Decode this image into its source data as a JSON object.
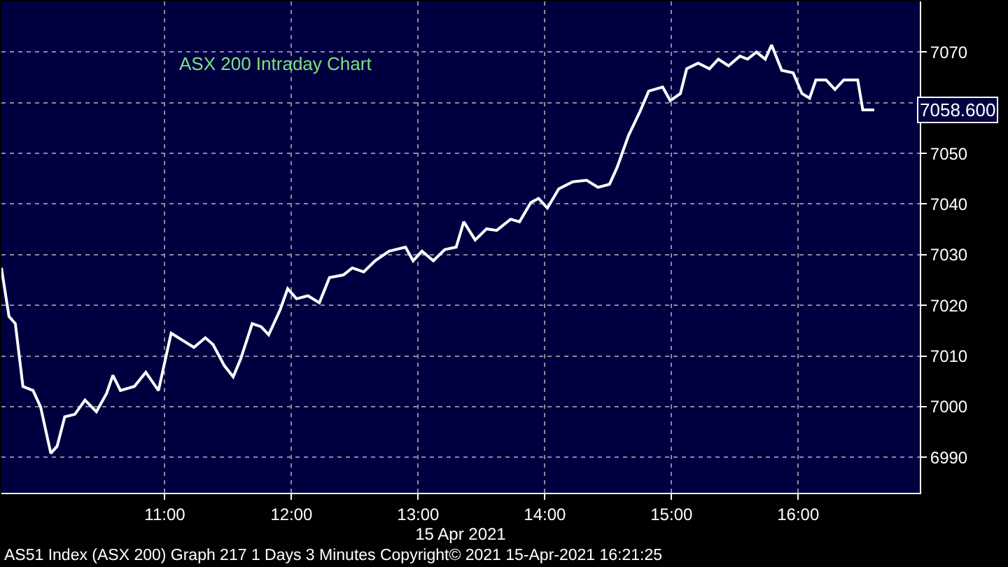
{
  "chart_data": {
    "type": "line",
    "xlabel": "15 Apr 2021",
    "annotations": [
      "ASX 200 Intraday Chart",
      "AS51 Index (ASX 200) Graph 217 1 Days 3 Minutes Copyright© 2021 15-Apr-2021 16:21:25",
      {
        "text": "7058.600",
        "x": 16.6,
        "y": 7058.6
      }
    ],
    "x": [
      9.71,
      9.77,
      9.82,
      9.88,
      9.96,
      10.02,
      10.1,
      10.15,
      10.21,
      10.29,
      10.37,
      10.46,
      10.54,
      10.59,
      10.65,
      10.76,
      10.85,
      10.95,
      11.05,
      11.14,
      11.23,
      11.32,
      11.38,
      11.47,
      11.54,
      11.6,
      11.69,
      11.76,
      11.82,
      11.91,
      11.97,
      12.04,
      12.13,
      12.22,
      12.3,
      12.41,
      12.48,
      12.57,
      12.66,
      12.77,
      12.9,
      12.96,
      13.03,
      13.12,
      13.21,
      13.3,
      13.36,
      13.45,
      13.54,
      13.62,
      13.73,
      13.8,
      13.89,
      13.95,
      14.02,
      14.11,
      14.22,
      14.33,
      14.42,
      14.51,
      14.57,
      14.66,
      14.75,
      14.82,
      14.93,
      14.99,
      15.07,
      15.12,
      15.21,
      15.3,
      15.37,
      15.45,
      15.54,
      15.6,
      15.67,
      15.74,
      15.79,
      15.87,
      15.96,
      16.03,
      16.09,
      16.14,
      16.22,
      16.29,
      16.36,
      16.47,
      16.51,
      16.6
    ],
    "series": [
      {
        "color": "#ffffff",
        "values": [
          7027.4,
          7017.8,
          7016.4,
          7004,
          7003.2,
          6999.9,
          6990.8,
          6992.2,
          6998,
          6998.5,
          7001.3,
          6999,
          7002.6,
          7006.2,
          7003.2,
          7004,
          7006.8,
          7003.2,
          7014.5,
          7013.1,
          7011.7,
          7013.6,
          7012.3,
          7008.1,
          7005.9,
          7009.5,
          7016.4,
          7015.8,
          7014.2,
          7019.1,
          7023.3,
          7021.3,
          7021.9,
          7020.5,
          7025.5,
          7026,
          7027.4,
          7026.6,
          7028.8,
          7030.7,
          7031.5,
          7028.8,
          7030.7,
          7028.8,
          7031,
          7031.5,
          7036.5,
          7032.9,
          7035.1,
          7034.8,
          7037,
          7036.5,
          7040.3,
          7041.1,
          7039.2,
          7043,
          7044.4,
          7044.7,
          7043.3,
          7043.9,
          7047.2,
          7053.5,
          7058.2,
          7062.3,
          7063.1,
          7060.4,
          7061.8,
          7066.7,
          7067.8,
          7066.7,
          7068.6,
          7067.3,
          7069.2,
          7068.6,
          7070,
          7068.6,
          7071.4,
          7066.4,
          7065.9,
          7061.8,
          7060.9,
          7064.5,
          7064.5,
          7062.6,
          7064.5,
          7064.5,
          7058.6,
          7058.6
        ]
      }
    ],
    "xlim": [
      9.71,
      16.96
    ],
    "ylim": [
      6983,
      7080
    ],
    "xticks": [
      {
        "value": 11,
        "label": "11:00"
      },
      {
        "value": 12,
        "label": "12:00"
      },
      {
        "value": 13,
        "label": "13:00"
      },
      {
        "value": 14,
        "label": "14:00"
      },
      {
        "value": 15,
        "label": "15:00"
      },
      {
        "value": 16,
        "label": "16:00"
      }
    ],
    "yticks": [
      6990,
      7000,
      7010,
      7020,
      7030,
      7040,
      7050,
      {
        "value": 7060,
        "label": null
      },
      7070
    ],
    "grid": true,
    "line_style": "solid",
    "marker": "none"
  }
}
